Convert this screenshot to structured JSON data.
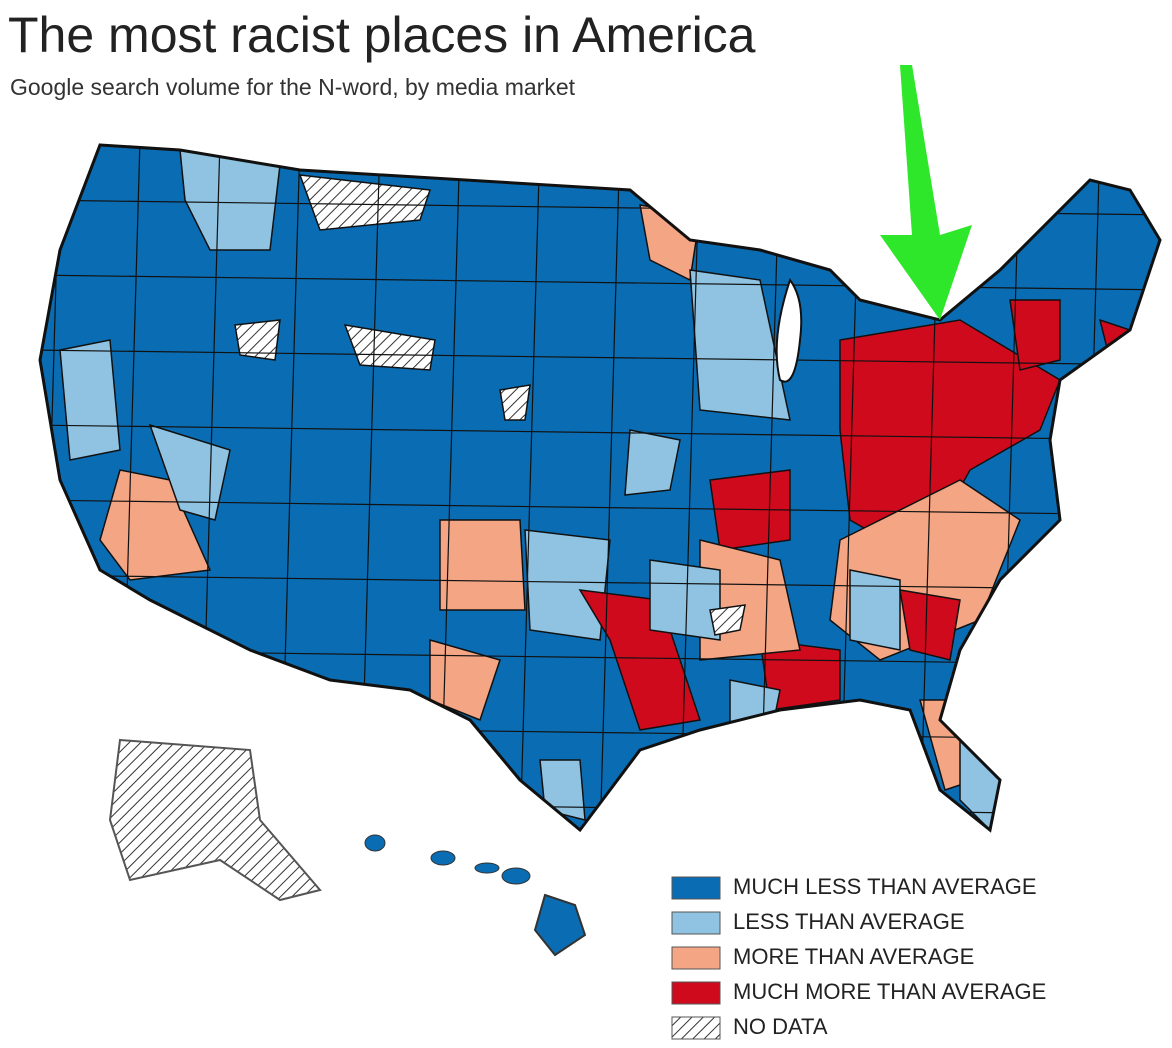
{
  "title": "The most racist places in America",
  "subtitle": "Google search volume for the N-word, by media market",
  "legend": [
    {
      "label": "MUCH LESS THAN AVERAGE",
      "color": "#0a6db3"
    },
    {
      "label": "LESS THAN AVERAGE",
      "color": "#8fc3e1"
    },
    {
      "label": "MORE THAN AVERAGE",
      "color": "#f3a584"
    },
    {
      "label": "MUCH MORE THAN AVERAGE",
      "color": "#cf0a1d"
    },
    {
      "label": "NO DATA"
    }
  ]
}
